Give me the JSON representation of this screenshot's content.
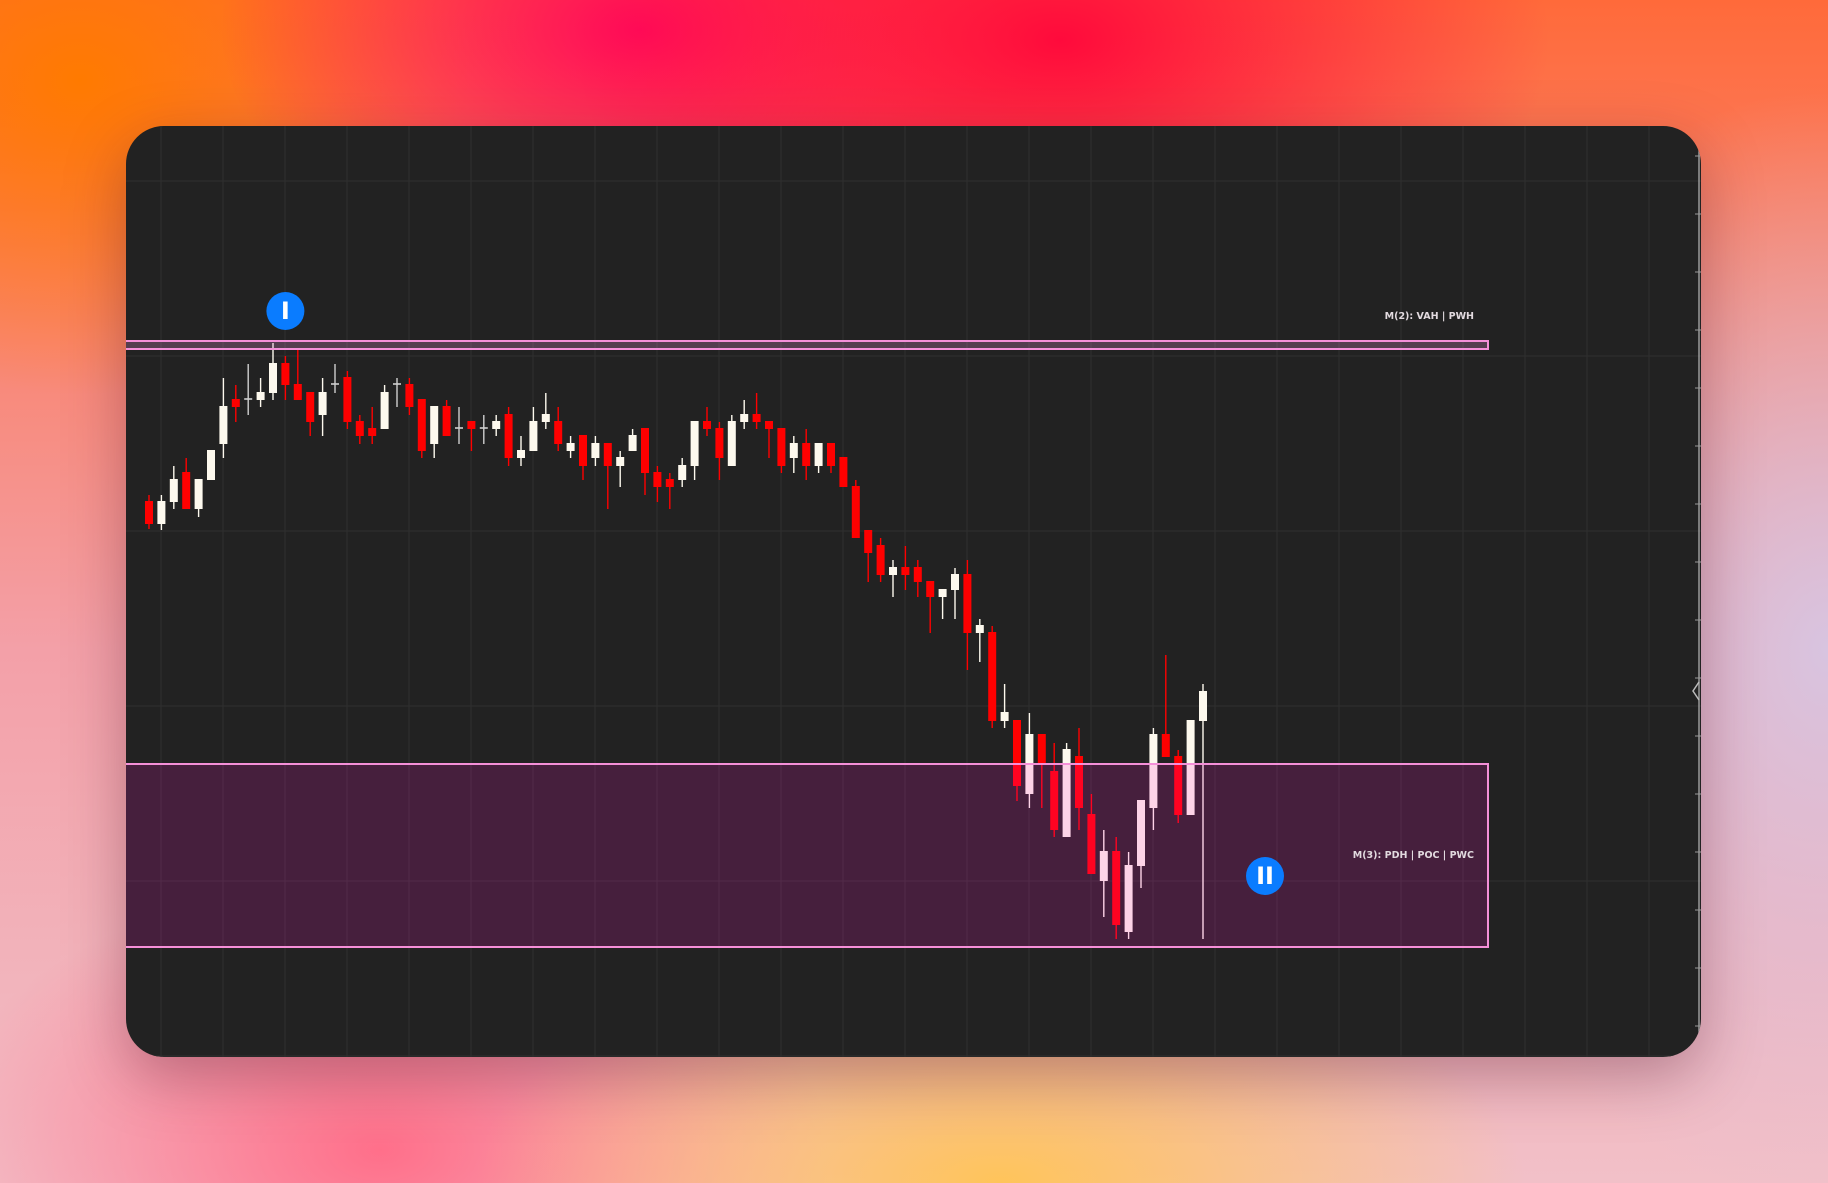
{
  "chart_data": {
    "type": "candlestick",
    "title": "",
    "xlabel": "",
    "ylabel": "",
    "grid": true,
    "colors": {
      "up": "#fdf9ee",
      "down": "#ff0000",
      "doji": "#cfcfcf",
      "zone_stroke": "#f58fd8",
      "background": "#222222",
      "badge": "#0a7cff"
    },
    "ylim": [
      4.3,
      97.4
    ],
    "ohlc": [
      [
        59.9,
        60.5,
        57.1,
        57.6
      ],
      [
        57.6,
        60.5,
        57.0,
        59.9
      ],
      [
        59.8,
        63.4,
        59.1,
        62.1
      ],
      [
        62.8,
        64.2,
        59.1,
        59.1
      ],
      [
        59.1,
        62.1,
        58.3,
        62.1
      ],
      [
        62.0,
        65.0,
        62.0,
        65.0
      ],
      [
        65.6,
        72.2,
        64.2,
        69.4
      ],
      [
        70.1,
        71.5,
        67.8,
        69.3
      ],
      [
        70.1,
        73.6,
        68.5,
        70.0
      ],
      [
        70.0,
        72.2,
        69.3,
        70.8
      ],
      [
        70.7,
        75.7,
        70.0,
        73.7
      ],
      [
        73.7,
        74.4,
        70.0,
        71.5
      ],
      [
        71.6,
        75.0,
        70.0,
        70.0
      ],
      [
        70.8,
        70.8,
        66.4,
        67.8
      ],
      [
        68.5,
        72.2,
        66.4,
        70.8
      ],
      [
        71.6,
        73.6,
        70.7,
        71.5
      ],
      [
        72.3,
        72.9,
        67.1,
        67.8
      ],
      [
        67.9,
        68.5,
        65.6,
        66.4
      ],
      [
        67.2,
        69.3,
        65.6,
        66.4
      ],
      [
        67.1,
        71.5,
        67.1,
        70.8
      ],
      [
        71.6,
        72.2,
        69.3,
        71.5
      ],
      [
        71.6,
        72.2,
        68.5,
        69.3
      ],
      [
        70.1,
        70.1,
        64.2,
        64.9
      ],
      [
        65.6,
        69.4,
        64.2,
        69.4
      ],
      [
        69.4,
        70.0,
        66.4,
        66.4
      ],
      [
        67.2,
        69.3,
        65.6,
        67.1
      ],
      [
        67.9,
        67.9,
        64.9,
        67.1
      ],
      [
        67.2,
        68.5,
        65.6,
        67.1
      ],
      [
        67.1,
        68.5,
        66.4,
        67.9
      ],
      [
        68.6,
        69.3,
        63.4,
        64.2
      ],
      [
        64.2,
        66.4,
        63.4,
        65.0
      ],
      [
        64.9,
        69.3,
        64.9,
        67.9
      ],
      [
        67.8,
        70.7,
        67.1,
        68.6
      ],
      [
        67.9,
        69.3,
        64.9,
        65.6
      ],
      [
        64.9,
        66.4,
        64.2,
        65.7
      ],
      [
        66.5,
        66.5,
        62.0,
        63.4
      ],
      [
        64.2,
        66.4,
        63.4,
        65.7
      ],
      [
        65.7,
        65.7,
        59.1,
        63.4
      ],
      [
        63.4,
        64.9,
        61.3,
        64.3
      ],
      [
        64.9,
        67.1,
        64.9,
        66.5
      ],
      [
        67.2,
        67.2,
        60.5,
        62.7
      ],
      [
        62.8,
        63.4,
        59.8,
        61.3
      ],
      [
        62.1,
        62.7,
        59.1,
        61.3
      ],
      [
        62.0,
        64.2,
        61.3,
        63.5
      ],
      [
        63.4,
        67.9,
        62.0,
        67.9
      ],
      [
        67.9,
        69.3,
        66.4,
        67.1
      ],
      [
        67.2,
        67.8,
        62.0,
        64.2
      ],
      [
        63.4,
        68.5,
        63.4,
        67.9
      ],
      [
        67.8,
        70.0,
        67.1,
        68.6
      ],
      [
        68.6,
        70.7,
        67.1,
        67.8
      ],
      [
        67.9,
        67.9,
        64.2,
        67.1
      ],
      [
        67.2,
        67.2,
        62.7,
        63.4
      ],
      [
        64.2,
        66.4,
        62.7,
        65.7
      ],
      [
        65.7,
        67.1,
        62.0,
        63.4
      ],
      [
        63.4,
        65.7,
        62.7,
        65.7
      ],
      [
        65.7,
        65.7,
        62.7,
        63.4
      ],
      [
        64.3,
        64.3,
        61.3,
        61.3
      ],
      [
        61.4,
        62.0,
        56.2,
        56.2
      ],
      [
        57.0,
        57.0,
        51.8,
        54.7
      ],
      [
        55.5,
        56.2,
        51.8,
        52.5
      ],
      [
        52.5,
        54.0,
        50.3,
        53.3
      ],
      [
        53.3,
        55.4,
        51.0,
        52.5
      ],
      [
        53.3,
        54.0,
        50.3,
        51.8
      ],
      [
        51.9,
        51.9,
        46.7,
        50.3
      ],
      [
        50.3,
        51.1,
        48.1,
        51.1
      ],
      [
        51.0,
        53.2,
        48.1,
        52.6
      ],
      [
        52.6,
        54.0,
        43.0,
        46.7
      ],
      [
        46.7,
        48.1,
        43.8,
        47.5
      ],
      [
        46.8,
        47.4,
        37.2,
        37.9
      ],
      [
        37.9,
        41.6,
        37.2,
        38.8
      ],
      [
        38.0,
        38.0,
        29.9,
        31.4
      ],
      [
        30.6,
        38.7,
        29.2,
        36.6
      ],
      [
        36.6,
        36.6,
        29.2,
        33.7
      ],
      [
        32.9,
        35.7,
        26.3,
        27.0
      ],
      [
        26.3,
        35.7,
        26.3,
        35.1
      ],
      [
        34.4,
        37.2,
        27.0,
        29.2
      ],
      [
        28.6,
        30.6,
        22.6,
        22.6
      ],
      [
        21.9,
        27.0,
        18.3,
        24.9
      ],
      [
        24.9,
        26.3,
        16.1,
        17.5
      ],
      [
        16.8,
        24.8,
        16.1,
        23.5
      ],
      [
        23.4,
        30.0,
        21.2,
        30.0
      ],
      [
        29.2,
        37.2,
        27.0,
        36.6
      ],
      [
        36.6,
        44.5,
        34.3,
        34.3
      ],
      [
        34.4,
        35.0,
        27.7,
        28.5
      ],
      [
        28.5,
        38.0,
        28.5,
        38.0
      ],
      [
        37.9,
        41.6,
        16.1,
        40.9
      ]
    ],
    "zones": [
      {
        "label": "M(2): VAH | PWH",
        "top": 75.9,
        "bottom": 75.1,
        "filled": false
      },
      {
        "label": "M(3): PDH | POC | PWC",
        "top": 33.6,
        "bottom": 15.3,
        "filled": true
      }
    ],
    "markers": [
      {
        "label": "I",
        "candle_index": 11,
        "price": 78.9
      },
      {
        "label": "II",
        "candle_index": 90,
        "price": 22.4
      }
    ]
  }
}
